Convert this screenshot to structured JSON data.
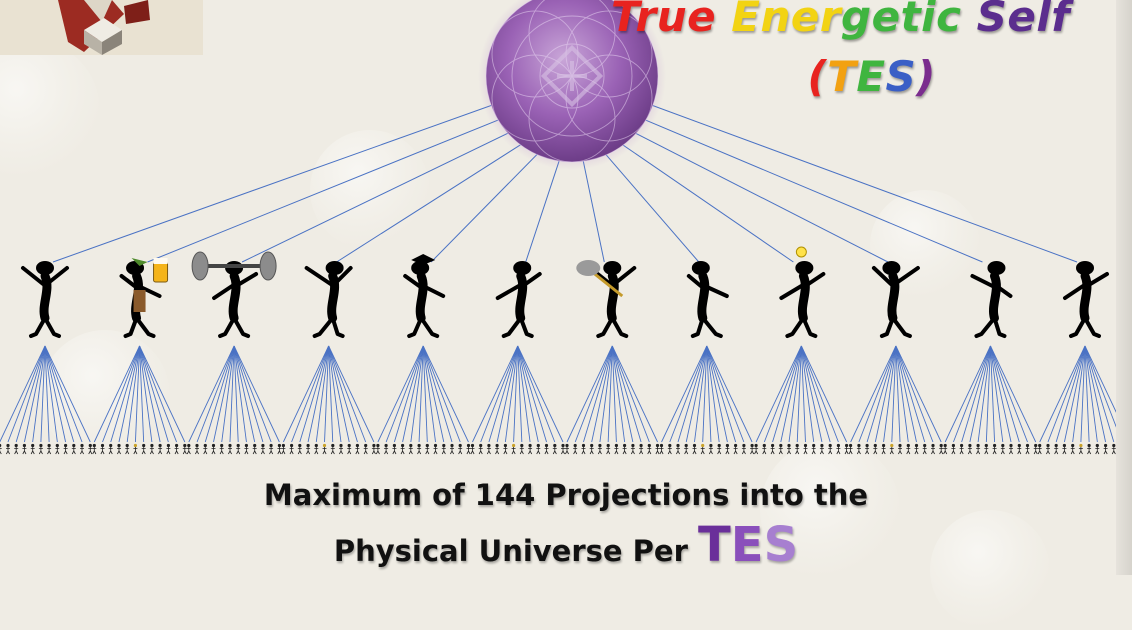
{
  "title": {
    "line1": [
      {
        "text": "True",
        "color": "#e8231f"
      },
      {
        "text": " "
      },
      {
        "text": "Ener",
        "color": "#f2d313"
      },
      {
        "text": "getic",
        "color": "#3fb53f"
      },
      {
        "text": " "
      },
      {
        "text": "Self",
        "color": "#5b2d8e"
      }
    ],
    "line2": [
      {
        "text": "(",
        "color": "#e8231f"
      },
      {
        "text": "T",
        "color": "#f2a112"
      },
      {
        "text": "E",
        "color": "#3fb53f"
      },
      {
        "text": "S",
        "color": "#3a5fc6"
      },
      {
        "text": ")",
        "color": "#7b2d8e"
      }
    ]
  },
  "caption": {
    "line1": "Maximum of 144 Projections into the",
    "line2_prefix": "Physical Universe Per ",
    "line2_tes": "TES",
    "tes_colors": [
      "#6a2f9a",
      "#8a4fbb",
      "#a77fd0"
    ]
  },
  "diagram": {
    "orb_color": "#a56fc1",
    "line_color": "#4a72c4",
    "figures": [
      {
        "name": "dancer-figure",
        "prop": "none"
      },
      {
        "name": "beer-drinker-figure",
        "prop": "beer"
      },
      {
        "name": "weightlifter-figure",
        "prop": "barbell"
      },
      {
        "name": "dancing-figure",
        "prop": "none"
      },
      {
        "name": "graduate-figure",
        "prop": "mortarboard"
      },
      {
        "name": "shrugging-figure",
        "prop": "none"
      },
      {
        "name": "cleaner-figure",
        "prop": "duster"
      },
      {
        "name": "crouching-figure",
        "prop": "none"
      },
      {
        "name": "idea-figure",
        "prop": "lightbulb"
      },
      {
        "name": "cheering-figure",
        "prop": "none"
      },
      {
        "name": "capped-figure",
        "prop": "none"
      },
      {
        "name": "shouting-figure",
        "prop": "none"
      }
    ],
    "projections_per_figure": 12
  }
}
